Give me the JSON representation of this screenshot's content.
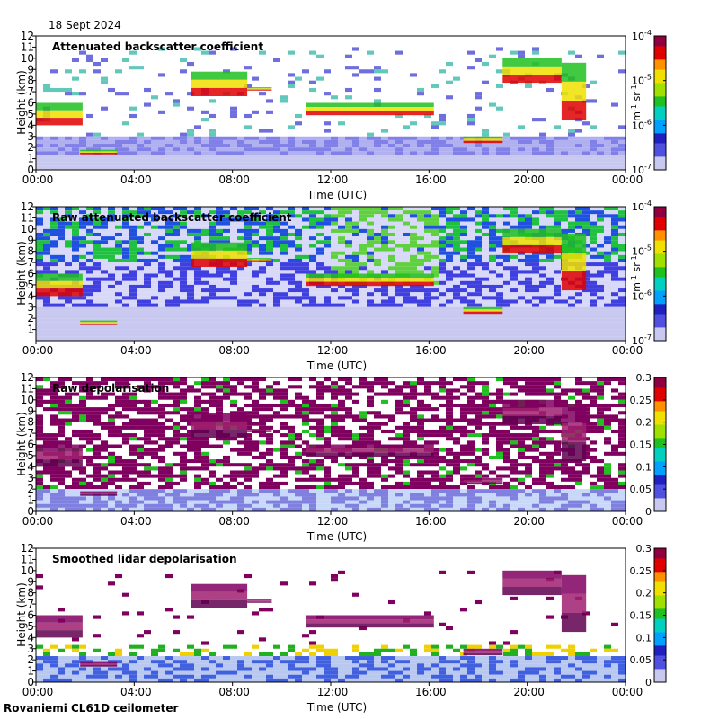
{
  "date": "18 Sept 2024",
  "footer": "Rovaniemi CL61D ceilometer",
  "colors": {
    "cloud_low": "#e4e4f6",
    "noise_blue": "#3a3ae0",
    "layer_green": "#2ecc40",
    "layer_yellow": "#f0e020",
    "layer_red": "#e00000",
    "depol_maroon": "#800060",
    "signal_white": "#ffffff"
  },
  "chart_data": [
    {
      "type": "heatmap",
      "title": "Attenuated backscatter coefficient",
      "xlabel": "Time (UTC)",
      "ylabel": "Height (km)",
      "x_ticks": [
        "00:00",
        "04:00",
        "08:00",
        "12:00",
        "16:00",
        "20:00",
        "00:00"
      ],
      "xlim_hours": [
        0,
        24
      ],
      "y_ticks": [
        "0",
        "1",
        "2",
        "3",
        "4",
        "5",
        "6",
        "7",
        "8",
        "9",
        "10",
        "11",
        "12"
      ],
      "ylim_km": [
        0,
        12
      ],
      "colorbar": {
        "scale": "log",
        "ticks": [
          "10",
          "10",
          "10",
          "10"
        ],
        "exponents": [
          "-7",
          "-6",
          "-5",
          "-4"
        ],
        "unit": "m",
        "unit_exp": "-1",
        "unit2": " sr",
        "unit2_exp": "-1"
      },
      "style": "masked"
    },
    {
      "type": "heatmap",
      "title": "Raw attenuated backscatter coefficient",
      "xlabel": "Time (UTC)",
      "ylabel": "Height (km)",
      "x_ticks": [
        "00:00",
        "04:00",
        "08:00",
        "12:00",
        "16:00",
        "20:00",
        "00:00"
      ],
      "xlim_hours": [
        0,
        24
      ],
      "y_ticks": [
        "1",
        "2",
        "3",
        "4",
        "5",
        "6",
        "7",
        "8",
        "9",
        "10",
        "11",
        "12"
      ],
      "ylim_km": [
        0,
        12
      ],
      "colorbar": {
        "scale": "log",
        "ticks": [
          "10",
          "10",
          "10",
          "10"
        ],
        "exponents": [
          "-7",
          "-6",
          "-5",
          "-4"
        ],
        "unit": "m",
        "unit_exp": "-1",
        "unit2": " sr",
        "unit2_exp": "-1"
      },
      "style": "raw"
    },
    {
      "type": "heatmap",
      "title": "Raw depolarisation",
      "xlabel": "Time (UTC)",
      "ylabel": "Height (km)",
      "x_ticks": [
        "00:00",
        "04:00",
        "08:00",
        "12:00",
        "16:00",
        "20:00",
        "00:00"
      ],
      "xlim_hours": [
        0,
        24
      ],
      "y_ticks": [
        "0",
        "1",
        "2",
        "3",
        "4",
        "5",
        "6",
        "7",
        "8",
        "9",
        "10",
        "11",
        "12"
      ],
      "ylim_km": [
        0,
        12
      ],
      "colorbar": {
        "scale": "linear",
        "ticks": [
          "0",
          "0.05",
          "0.1",
          "0.15",
          "0.2",
          "0.25",
          "0.3"
        ],
        "vlim": [
          0,
          0.3
        ]
      },
      "style": "depol_raw"
    },
    {
      "type": "heatmap",
      "title": "Smoothed lidar depolarisation",
      "xlabel": "Time (UTC)",
      "ylabel": "Height (km)",
      "x_ticks": [
        "00:00",
        "04:00",
        "08:00",
        "12:00",
        "16:00",
        "20:00",
        "00:00"
      ],
      "xlim_hours": [
        0,
        24
      ],
      "y_ticks": [
        "0",
        "1",
        "2",
        "3",
        "4",
        "5",
        "6",
        "7",
        "8",
        "9",
        "10",
        "11",
        "12"
      ],
      "ylim_km": [
        0,
        12
      ],
      "colorbar": {
        "scale": "linear",
        "ticks": [
          "0",
          "0.05",
          "0.1",
          "0.15",
          "0.2",
          "0.25",
          "0.3"
        ],
        "vlim": [
          0,
          0.3
        ]
      },
      "style": "depol_smooth"
    }
  ],
  "features": {
    "backscatter_layers": [
      {
        "name": "boundary-layer-cloud",
        "t0": 0.0,
        "t1": 1.9,
        "h0": 4.0,
        "h1": 6.0
      },
      {
        "name": "low-cloud",
        "t0": 1.8,
        "t1": 3.3,
        "h0": 1.4,
        "h1": 1.8
      },
      {
        "name": "mid-cloud",
        "t0": 6.3,
        "t1": 8.6,
        "h0": 6.6,
        "h1": 8.8
      },
      {
        "name": "mid-thin-layer",
        "t0": 8.6,
        "t1": 9.6,
        "h0": 7.1,
        "h1": 7.4
      },
      {
        "name": "long-thin-layer",
        "t0": 11.0,
        "t1": 16.2,
        "h0": 4.9,
        "h1": 6.0
      },
      {
        "name": "afternoon-layer",
        "t0": 17.4,
        "t1": 19.0,
        "h0": 2.4,
        "h1": 3.0
      },
      {
        "name": "high-cloud-a",
        "t0": 19.0,
        "t1": 21.4,
        "h0": 7.8,
        "h1": 10.0
      },
      {
        "name": "high-cloud-b",
        "t0": 21.4,
        "t1": 22.4,
        "h0": 4.5,
        "h1": 9.6
      }
    ]
  }
}
